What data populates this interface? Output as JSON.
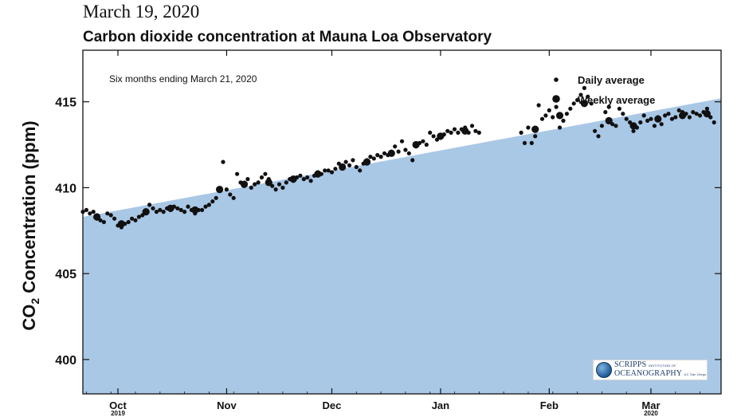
{
  "header": {
    "date": "March 19, 2020",
    "title": "Carbon dioxide concentration at Mauna Loa Observatory"
  },
  "chart_data": {
    "type": "scatter",
    "title": "Carbon dioxide concentration at Mauna Loa Observatory",
    "annotation": "Six months ending March 21, 2020",
    "ylabel": "Concentration (ppm)",
    "ylabel_prefix": "CO",
    "ylabel_sub": "2",
    "ylim": [
      398,
      418
    ],
    "yticks": [
      400,
      405,
      410,
      415
    ],
    "xlim": [
      "2019-09-21",
      "2020-03-21"
    ],
    "xticks": [
      {
        "date": "2019-10-01",
        "label": "Oct",
        "year": "2019"
      },
      {
        "date": "2019-11-01",
        "label": "Nov",
        "year": ""
      },
      {
        "date": "2019-12-01",
        "label": "Dec",
        "year": ""
      },
      {
        "date": "2020-01-01",
        "label": "Jan",
        "year": ""
      },
      {
        "date": "2020-02-01",
        "label": "Feb",
        "year": ""
      },
      {
        "date": "2020-03-01",
        "label": "Mar",
        "year": "2020"
      }
    ],
    "legend": {
      "position": "top-right",
      "entries": [
        "Daily average",
        "Weekly average"
      ]
    },
    "trend_fill": {
      "color": "#a9c8e6",
      "start": [
        "2019-09-21",
        408.3
      ],
      "end": [
        "2020-03-21",
        415.2
      ]
    },
    "series": [
      {
        "name": "Daily average",
        "points": [
          [
            "2019-09-21",
            408.6
          ],
          [
            "2019-09-22",
            408.7
          ],
          [
            "2019-09-23",
            408.5
          ],
          [
            "2019-09-24",
            408.6
          ],
          [
            "2019-09-25",
            408.2
          ],
          [
            "2019-09-26",
            408.1
          ],
          [
            "2019-09-27",
            408.0
          ],
          [
            "2019-09-28",
            408.5
          ],
          [
            "2019-09-29",
            408.4
          ],
          [
            "2019-09-30",
            408.2
          ],
          [
            "2019-10-01",
            407.8
          ],
          [
            "2019-10-02",
            407.7
          ],
          [
            "2019-10-03",
            407.9
          ],
          [
            "2019-10-04",
            408.0
          ],
          [
            "2019-10-05",
            408.2
          ],
          [
            "2019-10-06",
            408.1
          ],
          [
            "2019-10-07",
            408.3
          ],
          [
            "2019-10-08",
            408.4
          ],
          [
            "2019-10-09",
            408.6
          ],
          [
            "2019-10-10",
            409.0
          ],
          [
            "2019-10-11",
            408.8
          ],
          [
            "2019-10-12",
            408.6
          ],
          [
            "2019-10-13",
            408.7
          ],
          [
            "2019-10-14",
            408.6
          ],
          [
            "2019-10-15",
            408.8
          ],
          [
            "2019-10-16",
            408.7
          ],
          [
            "2019-10-17",
            408.9
          ],
          [
            "2019-10-18",
            408.8
          ],
          [
            "2019-10-19",
            408.7
          ],
          [
            "2019-10-20",
            408.6
          ],
          [
            "2019-10-21",
            408.9
          ],
          [
            "2019-10-22",
            408.7
          ],
          [
            "2019-10-23",
            408.5
          ],
          [
            "2019-10-24",
            408.7
          ],
          [
            "2019-10-25",
            408.7
          ],
          [
            "2019-10-26",
            408.9
          ],
          [
            "2019-10-27",
            409.0
          ],
          [
            "2019-10-28",
            409.2
          ],
          [
            "2019-10-29",
            409.4
          ],
          [
            "2019-10-30",
            409.9
          ],
          [
            "2019-10-31",
            411.5
          ],
          [
            "2019-11-01",
            409.9
          ],
          [
            "2019-11-02",
            409.6
          ],
          [
            "2019-11-03",
            409.4
          ],
          [
            "2019-11-04",
            410.8
          ],
          [
            "2019-11-05",
            410.3
          ],
          [
            "2019-11-06",
            410.1
          ],
          [
            "2019-11-07",
            410.5
          ],
          [
            "2019-11-08",
            410.0
          ],
          [
            "2019-11-09",
            410.2
          ],
          [
            "2019-11-10",
            410.3
          ],
          [
            "2019-11-11",
            410.6
          ],
          [
            "2019-11-12",
            410.8
          ],
          [
            "2019-11-13",
            410.5
          ],
          [
            "2019-11-14",
            410.1
          ],
          [
            "2019-11-15",
            409.9
          ],
          [
            "2019-11-16",
            410.2
          ],
          [
            "2019-11-17",
            410.0
          ],
          [
            "2019-11-18",
            410.3
          ],
          [
            "2019-11-19",
            410.5
          ],
          [
            "2019-11-20",
            410.4
          ],
          [
            "2019-11-21",
            410.6
          ],
          [
            "2019-11-22",
            410.7
          ],
          [
            "2019-11-23",
            410.5
          ],
          [
            "2019-11-24",
            410.6
          ],
          [
            "2019-11-25",
            410.4
          ],
          [
            "2019-11-26",
            410.7
          ],
          [
            "2019-11-27",
            410.9
          ],
          [
            "2019-11-28",
            410.8
          ],
          [
            "2019-11-29",
            411.0
          ],
          [
            "2019-11-30",
            411.0
          ],
          [
            "2019-12-01",
            410.9
          ],
          [
            "2019-12-02",
            411.1
          ],
          [
            "2019-12-03",
            411.4
          ],
          [
            "2019-12-04",
            411.2
          ],
          [
            "2019-12-05",
            411.5
          ],
          [
            "2019-12-06",
            411.3
          ],
          [
            "2019-12-07",
            411.6
          ],
          [
            "2019-12-08",
            411.2
          ],
          [
            "2019-12-09",
            411.0
          ],
          [
            "2019-12-10",
            411.4
          ],
          [
            "2019-12-11",
            411.6
          ],
          [
            "2019-12-12",
            411.8
          ],
          [
            "2019-12-13",
            411.7
          ],
          [
            "2019-12-14",
            411.9
          ],
          [
            "2019-12-15",
            411.8
          ],
          [
            "2019-12-16",
            412.0
          ],
          [
            "2019-12-17",
            411.9
          ],
          [
            "2019-12-18",
            412.1
          ],
          [
            "2019-12-19",
            412.4
          ],
          [
            "2019-12-20",
            412.1
          ],
          [
            "2019-12-21",
            412.7
          ],
          [
            "2019-12-22",
            412.2
          ],
          [
            "2019-12-23",
            412.0
          ],
          [
            "2019-12-24",
            411.6
          ],
          [
            "2019-12-25",
            412.4
          ],
          [
            "2019-12-26",
            412.6
          ],
          [
            "2019-12-27",
            412.7
          ],
          [
            "2019-12-28",
            412.5
          ],
          [
            "2019-12-29",
            413.2
          ],
          [
            "2019-12-30",
            413.0
          ],
          [
            "2019-12-31",
            412.8
          ],
          [
            "2020-01-01",
            412.9
          ],
          [
            "2020-01-02",
            413.1
          ],
          [
            "2020-01-03",
            413.3
          ],
          [
            "2020-01-04",
            413.2
          ],
          [
            "2020-01-05",
            413.4
          ],
          [
            "2020-01-06",
            413.2
          ],
          [
            "2020-01-07",
            413.4
          ],
          [
            "2020-01-08",
            413.5
          ],
          [
            "2020-01-09",
            413.2
          ],
          [
            "2020-01-10",
            413.6
          ],
          [
            "2020-01-11",
            413.3
          ],
          [
            "2020-01-12",
            413.2
          ],
          [
            "2020-01-24",
            413.2
          ],
          [
            "2020-01-25",
            412.6
          ],
          [
            "2020-01-26",
            413.5
          ],
          [
            "2020-01-27",
            412.6
          ],
          [
            "2020-01-28",
            413.0
          ],
          [
            "2020-01-29",
            414.8
          ],
          [
            "2020-01-30",
            414.0
          ],
          [
            "2020-01-31",
            414.2
          ],
          [
            "2020-02-01",
            414.5
          ],
          [
            "2020-02-02",
            414.1
          ],
          [
            "2020-02-03",
            414.7
          ],
          [
            "2020-02-04",
            413.5
          ],
          [
            "2020-02-05",
            413.9
          ],
          [
            "2020-02-06",
            414.3
          ],
          [
            "2020-02-07",
            414.6
          ],
          [
            "2020-02-08",
            414.9
          ],
          [
            "2020-02-09",
            415.1
          ],
          [
            "2020-02-10",
            415.4
          ],
          [
            "2020-02-11",
            415.8
          ],
          [
            "2020-02-12",
            415.3
          ],
          [
            "2020-02-13",
            414.9
          ],
          [
            "2020-02-14",
            413.3
          ],
          [
            "2020-02-15",
            413.0
          ],
          [
            "2020-02-16",
            413.6
          ],
          [
            "2020-02-17",
            414.4
          ],
          [
            "2020-02-18",
            414.7
          ],
          [
            "2020-02-19",
            413.7
          ],
          [
            "2020-02-20",
            413.6
          ],
          [
            "2020-02-21",
            414.6
          ],
          [
            "2020-02-22",
            414.3
          ],
          [
            "2020-02-23",
            414.0
          ],
          [
            "2020-02-24",
            413.8
          ],
          [
            "2020-02-25",
            413.3
          ],
          [
            "2020-02-26",
            413.5
          ],
          [
            "2020-02-27",
            413.8
          ],
          [
            "2020-02-28",
            414.2
          ],
          [
            "2020-02-29",
            413.9
          ],
          [
            "2020-03-01",
            414.0
          ],
          [
            "2020-03-02",
            413.6
          ],
          [
            "2020-03-03",
            414.1
          ],
          [
            "2020-03-04",
            413.7
          ],
          [
            "2020-03-05",
            414.2
          ],
          [
            "2020-03-06",
            414.3
          ],
          [
            "2020-03-07",
            414.0
          ],
          [
            "2020-03-08",
            414.1
          ],
          [
            "2020-03-09",
            414.5
          ],
          [
            "2020-03-10",
            414.4
          ],
          [
            "2020-03-11",
            414.3
          ],
          [
            "2020-03-12",
            414.1
          ],
          [
            "2020-03-13",
            414.4
          ],
          [
            "2020-03-14",
            414.3
          ],
          [
            "2020-03-15",
            414.2
          ],
          [
            "2020-03-16",
            414.4
          ],
          [
            "2020-03-17",
            414.6
          ],
          [
            "2020-03-18",
            414.1
          ],
          [
            "2020-03-19",
            413.8
          ]
        ]
      },
      {
        "name": "Weekly average",
        "points": [
          [
            "2019-09-25",
            408.3
          ],
          [
            "2019-10-02",
            407.9
          ],
          [
            "2019-10-09",
            408.6
          ],
          [
            "2019-10-16",
            408.8
          ],
          [
            "2019-10-23",
            408.7
          ],
          [
            "2019-10-30",
            409.9
          ],
          [
            "2019-11-06",
            410.2
          ],
          [
            "2019-11-13",
            410.3
          ],
          [
            "2019-11-20",
            410.5
          ],
          [
            "2019-11-27",
            410.8
          ],
          [
            "2019-12-04",
            411.2
          ],
          [
            "2019-12-11",
            411.5
          ],
          [
            "2019-12-18",
            412.0
          ],
          [
            "2019-12-25",
            412.5
          ],
          [
            "2020-01-01",
            413.0
          ],
          [
            "2020-01-08",
            413.3
          ],
          [
            "2020-01-28",
            413.4
          ],
          [
            "2020-02-04",
            414.2
          ],
          [
            "2020-02-11",
            414.9
          ],
          [
            "2020-02-18",
            413.9
          ],
          [
            "2020-02-25",
            413.6
          ],
          [
            "2020-03-03",
            414.0
          ],
          [
            "2020-03-10",
            414.2
          ],
          [
            "2020-03-17",
            414.3
          ]
        ]
      }
    ]
  },
  "logo": {
    "line1": "SCRIPPS",
    "line1_small": "INSTITUTION OF",
    "line2": "OCEANOGRAPHY",
    "line2_small": "UC San Diego"
  }
}
